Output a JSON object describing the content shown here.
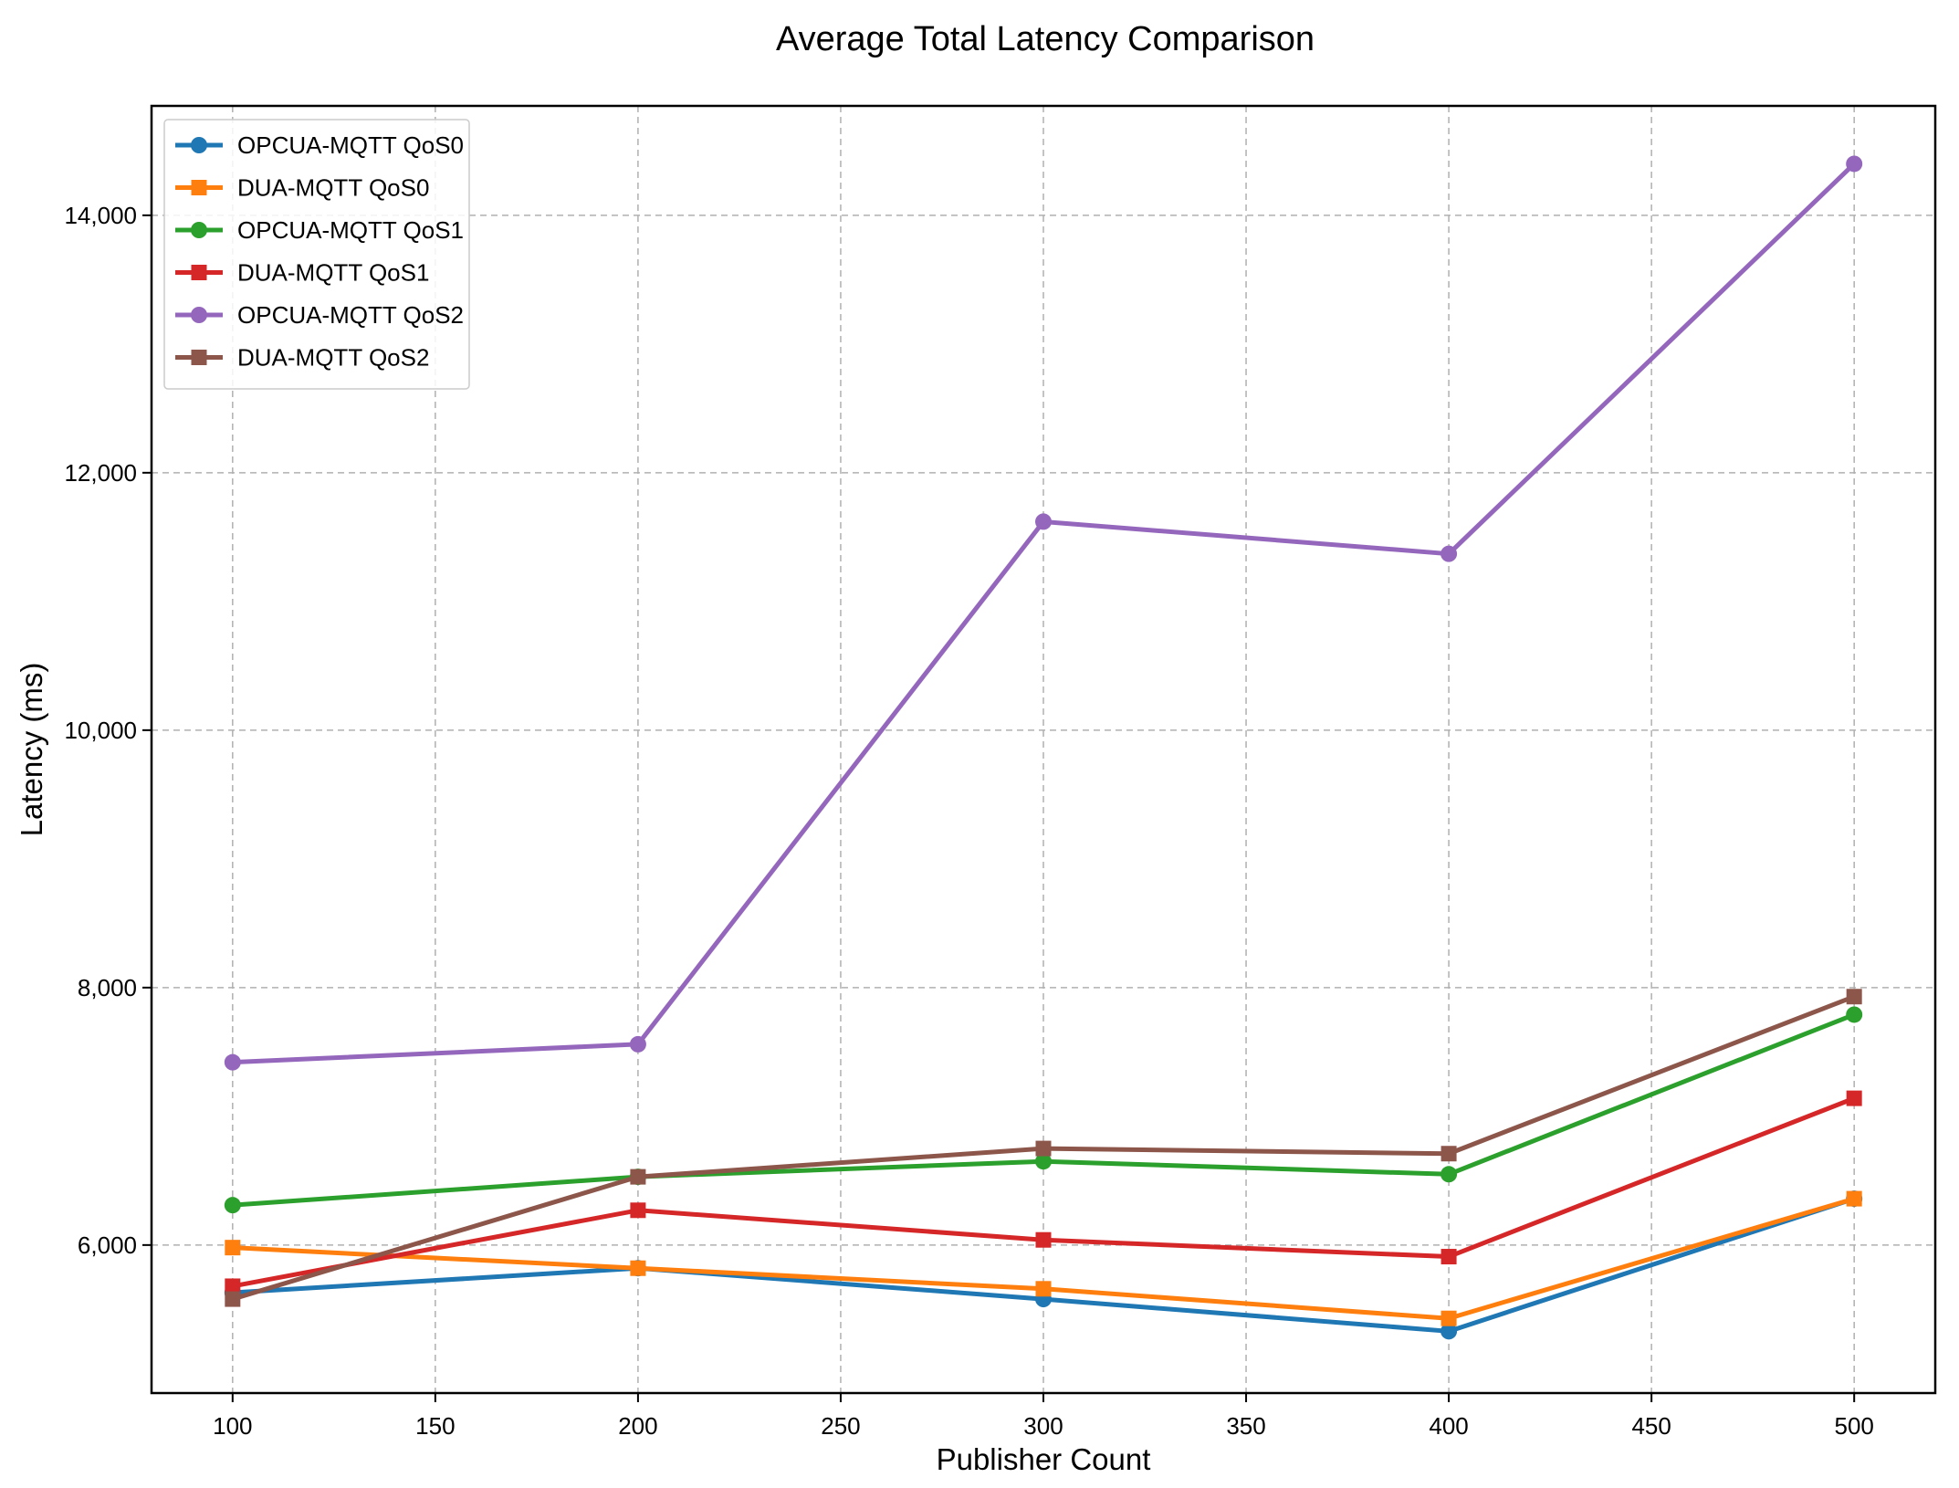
{
  "chart_data": {
    "type": "line",
    "title": "Average Total Latency Comparison",
    "xlabel": "Publisher Count",
    "ylabel": "Latency (ms)",
    "x": [
      100,
      200,
      300,
      400,
      500
    ],
    "xlim": [
      80,
      520
    ],
    "ylim": [
      4850,
      14850
    ],
    "xticks": [
      100,
      150,
      200,
      250,
      300,
      350,
      400,
      450,
      500
    ],
    "yticks": [
      6000,
      8000,
      10000,
      12000,
      14000
    ],
    "ytick_labels": [
      "6,000",
      "8,000",
      "10,000",
      "12,000",
      "14,000"
    ],
    "grid": true,
    "legend_position": "top-left",
    "series": [
      {
        "name": "OPCUA-MQTT QoS0",
        "color": "#1f77b4",
        "marker": "circle",
        "values": [
          5630,
          5820,
          5580,
          5330,
          6360
        ]
      },
      {
        "name": "DUA-MQTT QoS0",
        "color": "#ff7f0e",
        "marker": "square",
        "values": [
          5980,
          5820,
          5660,
          5430,
          6360
        ]
      },
      {
        "name": "OPCUA-MQTT QoS1",
        "color": "#2ca02c",
        "marker": "circle",
        "values": [
          6310,
          6530,
          6650,
          6550,
          7790
        ]
      },
      {
        "name": "DUA-MQTT QoS1",
        "color": "#d62728",
        "marker": "square",
        "values": [
          5680,
          6270,
          6040,
          5910,
          7140
        ]
      },
      {
        "name": "OPCUA-MQTT QoS2",
        "color": "#9467bd",
        "marker": "circle",
        "values": [
          7420,
          7560,
          11620,
          11370,
          14400
        ]
      },
      {
        "name": "DUA-MQTT QoS2",
        "color": "#8c564b",
        "marker": "square",
        "values": [
          5580,
          6530,
          6750,
          6710,
          7930
        ]
      }
    ]
  }
}
